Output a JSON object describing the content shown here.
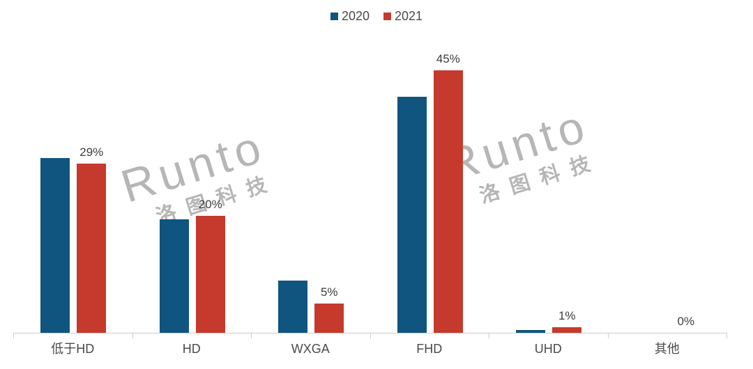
{
  "legend": {
    "items": [
      {
        "label": "2020",
        "color": "#10557f"
      },
      {
        "label": "2021",
        "color": "#c53a2c"
      }
    ]
  },
  "watermark": {
    "latin": "Runto",
    "cjk": "洛图科技"
  },
  "chart_data": {
    "type": "bar",
    "categories": [
      "低于HD",
      "HD",
      "WXGA",
      "FHD",
      "UHD",
      "其他"
    ],
    "series": [
      {
        "name": "2020",
        "color": "#10557f",
        "values": [
          30,
          19.5,
          9,
          40.5,
          0.5,
          0
        ]
      },
      {
        "name": "2021",
        "color": "#c53a2c",
        "values": [
          29,
          20,
          5,
          45,
          1,
          0
        ]
      }
    ],
    "value_labels": {
      "series": "2021",
      "labels": [
        "29%",
        "20%",
        "5%",
        "45%",
        "1%",
        "0%"
      ]
    },
    "title": "",
    "xlabel": "",
    "ylabel": "",
    "ylim": [
      0,
      50
    ],
    "grid": false,
    "legend_position": "top-center",
    "y_axis_visible": false
  }
}
